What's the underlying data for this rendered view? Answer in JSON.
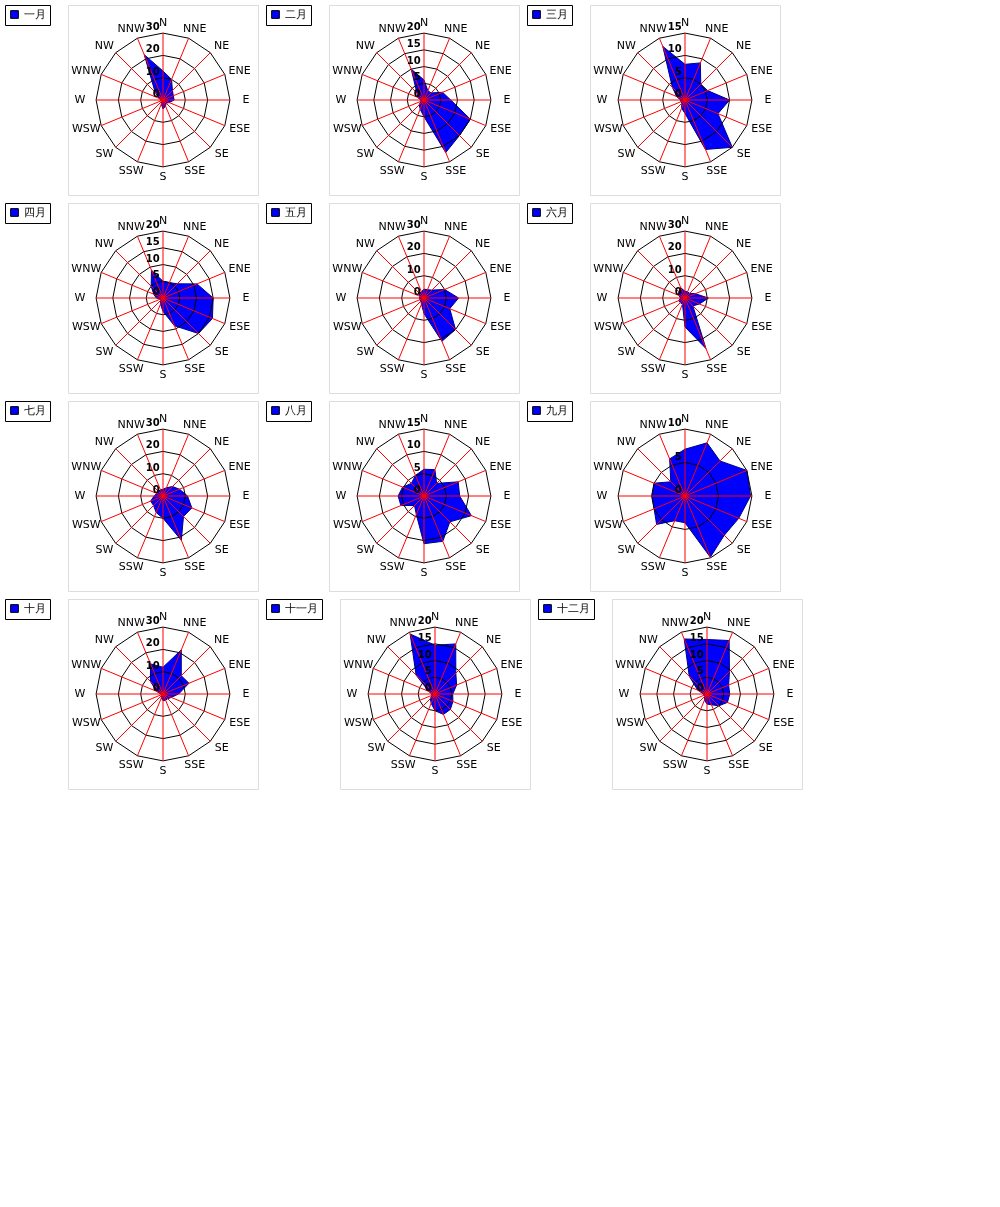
{
  "chart_data": [
    {
      "type": "radar",
      "categories": [
        "N",
        "NNE",
        "NE",
        "ENE",
        "E",
        "ESE",
        "SE",
        "SSE",
        "S",
        "SSW",
        "SW",
        "WSW",
        "W",
        "WNW",
        "NW",
        "NNW"
      ],
      "ylim": [
        0,
        30
      ],
      "yticks": [
        0,
        10,
        20,
        30
      ],
      "grid": true,
      "legend": "left",
      "marker": "none",
      "series": [
        {
          "name": "一月",
          "color": "#0000ff",
          "values": [
            13,
            10,
            6,
            5,
            5,
            3,
            2,
            3,
            4,
            2,
            1,
            1,
            1,
            2,
            5,
            22
          ]
        }
      ]
    },
    {
      "type": "radar",
      "categories": [
        "N",
        "NNE",
        "NE",
        "ENE",
        "E",
        "ESE",
        "SE",
        "SSE",
        "S",
        "SSW",
        "SW",
        "WSW",
        "W",
        "WNW",
        "NW",
        "NNW"
      ],
      "ylim": [
        0,
        20
      ],
      "yticks": [
        0,
        5,
        10,
        15,
        20
      ],
      "grid": true,
      "legend": "left",
      "marker": "none",
      "series": [
        {
          "name": "二月",
          "color": "#0000ff",
          "values": [
            6,
            3,
            3,
            6,
            8,
            15,
            15,
            17,
            5,
            3,
            2,
            1,
            1,
            2,
            3,
            10
          ]
        }
      ]
    },
    {
      "type": "radar",
      "categories": [
        "N",
        "NNE",
        "NE",
        "ENE",
        "E",
        "ESE",
        "SE",
        "SSE",
        "S",
        "SSW",
        "SW",
        "WSW",
        "W",
        "WNW",
        "NW",
        "NNW"
      ],
      "ylim": [
        0,
        15
      ],
      "yticks": [
        0,
        5,
        10,
        15
      ],
      "grid": true,
      "legend": "left",
      "marker": "none",
      "series": [
        {
          "name": "三月",
          "color": "#0000ff",
          "values": [
            8,
            9,
            5,
            5.5,
            10,
            8,
            15,
            12,
            3,
            2,
            1,
            1,
            1,
            2,
            4,
            13
          ]
        }
      ]
    },
    {
      "type": "radar",
      "categories": [
        "N",
        "NNE",
        "NE",
        "ENE",
        "E",
        "ESE",
        "SE",
        "SSE",
        "S",
        "SSW",
        "SW",
        "WSW",
        "W",
        "WNW",
        "NW",
        "NNW"
      ],
      "ylim": [
        0,
        20
      ],
      "yticks": [
        0,
        5,
        10,
        15,
        20
      ],
      "grid": true,
      "legend": "left",
      "marker": "none",
      "series": [
        {
          "name": "四月",
          "color": "#0000ff",
          "values": [
            5,
            5,
            6,
            11,
            15,
            16,
            15,
            9,
            4,
            2,
            1,
            1,
            2,
            3,
            5,
            9
          ]
        }
      ]
    },
    {
      "type": "radar",
      "categories": [
        "N",
        "NNE",
        "NE",
        "ENE",
        "E",
        "ESE",
        "SE",
        "SSE",
        "S",
        "SSW",
        "SW",
        "WSW",
        "W",
        "WNW",
        "NW",
        "NNW"
      ],
      "ylim": [
        0,
        30
      ],
      "yticks": [
        0,
        10,
        20,
        30
      ],
      "grid": true,
      "legend": "left",
      "marker": "none",
      "series": [
        {
          "name": "五月",
          "color": "#0000ff",
          "values": [
            4,
            4,
            5,
            10,
            15.5,
            12.5,
            20,
            21,
            7,
            3,
            2,
            2,
            2,
            2,
            3,
            3
          ]
        }
      ]
    },
    {
      "type": "radar",
      "categories": [
        "N",
        "NNE",
        "NE",
        "ENE",
        "E",
        "ESE",
        "SE",
        "SSE",
        "S",
        "SSW",
        "SW",
        "WSW",
        "W",
        "WNW",
        "NW",
        "NNW"
      ],
      "ylim": [
        0,
        30
      ],
      "yticks": [
        0,
        10,
        20,
        30
      ],
      "grid": true,
      "legend": "left",
      "marker": "none",
      "series": [
        {
          "name": "六月",
          "color": "#0000ff",
          "values": [
            3,
            3,
            3,
            5,
            10.5,
            7,
            5,
            24.5,
            13,
            3,
            3,
            3,
            2,
            3,
            4,
            5
          ]
        }
      ]
    },
    {
      "type": "radar",
      "categories": [
        "N",
        "NNE",
        "NE",
        "ENE",
        "E",
        "ESE",
        "SE",
        "SSE",
        "S",
        "SSW",
        "SW",
        "WSW",
        "W",
        "WNW",
        "NW",
        "NNW"
      ],
      "ylim": [
        0,
        30
      ],
      "yticks": [
        0,
        10,
        20,
        30
      ],
      "grid": true,
      "legend": "left",
      "marker": "none",
      "series": [
        {
          "name": "七月",
          "color": "#0000ff",
          "values": [
            3,
            4,
            6,
            8,
            11,
            14,
            13,
            21.5,
            10,
            8,
            6,
            6,
            4,
            3,
            3,
            3
          ]
        }
      ]
    },
    {
      "type": "radar",
      "categories": [
        "N",
        "NNE",
        "NE",
        "ENE",
        "E",
        "ESE",
        "SE",
        "SSE",
        "S",
        "SSW",
        "SW",
        "WSW",
        "W",
        "WNW",
        "NW",
        "NNW"
      ],
      "ylim": [
        0,
        15
      ],
      "yticks": [
        0,
        5,
        10,
        15
      ],
      "grid": true,
      "legend": "left",
      "marker": "none",
      "series": [
        {
          "name": "八月",
          "color": "#0000ff",
          "values": [
            6,
            6.4,
            4,
            8.3,
            8,
            11.5,
            8.2,
            11,
            10.7,
            4.5,
            3,
            5.6,
            5.8,
            5.2,
            4,
            5
          ]
        }
      ]
    },
    {
      "type": "radar",
      "categories": [
        "N",
        "NNE",
        "NE",
        "ENE",
        "E",
        "ESE",
        "SE",
        "SSE",
        "S",
        "SSW",
        "SW",
        "WSW",
        "W",
        "WNW",
        "NW",
        "NNW"
      ],
      "ylim": [
        0,
        10
      ],
      "yticks": [
        0,
        5,
        10
      ],
      "grid": true,
      "legend": "left",
      "marker": "none",
      "series": [
        {
          "name": "九月",
          "color": "#0000ff",
          "values": [
            7,
            8.6,
            7.4,
            10,
            9.8,
            8.7,
            8.3,
            9.9,
            4,
            4,
            6,
            5,
            4.9,
            5,
            3,
            6
          ]
        }
      ]
    },
    {
      "type": "radar",
      "categories": [
        "N",
        "NNE",
        "NE",
        "ENE",
        "E",
        "ESE",
        "SE",
        "SSE",
        "S",
        "SSW",
        "SW",
        "WSW",
        "W",
        "WNW",
        "NW",
        "NNW"
      ],
      "ylim": [
        0,
        30
      ],
      "yticks": [
        0,
        10,
        20,
        30
      ],
      "grid": true,
      "legend": "left",
      "marker": "none",
      "series": [
        {
          "name": "十月",
          "color": "#0000ff",
          "values": [
            12,
            21.4,
            11.6,
            12.6,
            7,
            4,
            3,
            3,
            3,
            2,
            1,
            1,
            1,
            3,
            8,
            14.6
          ]
        }
      ]
    },
    {
      "type": "radar",
      "categories": [
        "N",
        "NNE",
        "NE",
        "ENE",
        "E",
        "ESE",
        "SE",
        "SSE",
        "S",
        "SSW",
        "SW",
        "WSW",
        "W",
        "WNW",
        "NW",
        "NNW"
      ],
      "ylim": [
        0,
        20
      ],
      "yticks": [
        0,
        5,
        10,
        15,
        20
      ],
      "grid": true,
      "legend": "left",
      "marker": "none",
      "series": [
        {
          "name": "十一月",
          "color": "#0000ff",
          "values": [
            14.6,
            16.2,
            8.8,
            7,
            5.3,
            5.8,
            6.5,
            6.6,
            5,
            3,
            2,
            1,
            1,
            2,
            8,
            19.4
          ]
        }
      ]
    },
    {
      "type": "radar",
      "categories": [
        "N",
        "NNE",
        "NE",
        "ENE",
        "E",
        "ESE",
        "SE",
        "SSE",
        "S",
        "SSW",
        "SW",
        "WSW",
        "W",
        "WNW",
        "NW",
        "NNW"
      ],
      "ylim": [
        0,
        20
      ],
      "yticks": [
        0,
        5,
        10,
        15,
        20
      ],
      "grid": true,
      "legend": "left",
      "marker": "none",
      "series": [
        {
          "name": "十二月",
          "color": "#0000ff",
          "values": [
            16.3,
            17.3,
            9.5,
            7,
            6.8,
            6.6,
            5,
            3.5,
            3,
            2,
            1,
            1,
            1,
            3,
            7.5,
            17.8
          ]
        }
      ]
    }
  ]
}
